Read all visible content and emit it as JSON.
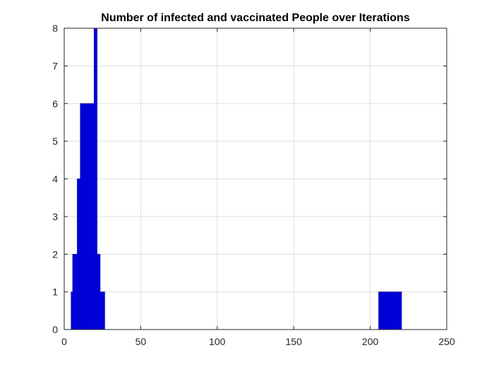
{
  "chart_data": {
    "type": "bar",
    "title": "Number of infected and vaccinated People over Iterations",
    "xlabel": "",
    "ylabel": "",
    "xlim": [
      0,
      250
    ],
    "ylim": [
      0,
      8
    ],
    "grid": true,
    "bar_color": "#0000ff",
    "edge_color": "#000080",
    "x": [
      5,
      6,
      7,
      8,
      9,
      10,
      11,
      12,
      13,
      14,
      15,
      16,
      17,
      18,
      19,
      20,
      21,
      22,
      23,
      24,
      25,
      26,
      206,
      207,
      208,
      209,
      210,
      211,
      212,
      213,
      214,
      215,
      216,
      217,
      218,
      219,
      220
    ],
    "values": [
      1,
      2,
      2,
      2,
      4,
      4,
      6,
      6,
      6,
      6,
      6,
      6,
      6,
      6,
      6,
      8,
      8,
      2,
      2,
      1,
      1,
      1,
      1,
      1,
      1,
      1,
      1,
      1,
      1,
      1,
      1,
      1,
      1,
      1,
      1,
      1,
      1
    ],
    "x_ticks": [
      0,
      50,
      100,
      150,
      200,
      250
    ],
    "y_ticks": [
      0,
      1,
      2,
      3,
      4,
      5,
      6,
      7,
      8
    ]
  }
}
